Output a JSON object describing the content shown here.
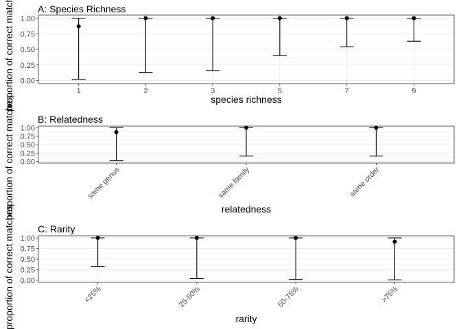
{
  "chart_data": [
    {
      "type": "errorbar",
      "title": "A: Species Richness",
      "xlabel": "species richness",
      "ylabel": "proportion of correct matches",
      "ylim": [
        0,
        1
      ],
      "yticks": [
        "0.00",
        "0.25",
        "0.50",
        "0.75",
        "1.00"
      ],
      "categories": [
        "1",
        "2",
        "3",
        "5",
        "7",
        "9"
      ],
      "x_tick_rotation": 0,
      "grid": true,
      "points": [
        {
          "y": 0.87,
          "lower": 0.02,
          "upper": 1.0
        },
        {
          "y": 1.0,
          "lower": 0.13,
          "upper": 1.0
        },
        {
          "y": 1.0,
          "lower": 0.16,
          "upper": 1.0
        },
        {
          "y": 1.0,
          "lower": 0.4,
          "upper": 1.0
        },
        {
          "y": 1.0,
          "lower": 0.54,
          "upper": 1.0
        },
        {
          "y": 1.0,
          "lower": 0.63,
          "upper": 1.0
        }
      ]
    },
    {
      "type": "errorbar",
      "title": "B: Relatedness",
      "xlabel": "relatedness",
      "ylabel": "proportion of correct matches",
      "ylim": [
        0,
        1
      ],
      "yticks": [
        "0.00",
        "0.25",
        "0.50",
        "0.75",
        "1.00"
      ],
      "categories": [
        "same genus",
        "same family",
        "same order"
      ],
      "x_tick_rotation": -45,
      "grid": true,
      "points": [
        {
          "y": 0.87,
          "lower": 0.02,
          "upper": 1.0
        },
        {
          "y": 1.0,
          "lower": 0.16,
          "upper": 1.0
        },
        {
          "y": 1.0,
          "lower": 0.16,
          "upper": 1.0
        }
      ]
    },
    {
      "type": "errorbar",
      "title": "C: Rarity",
      "xlabel": "rarity",
      "ylabel": "proportion of correct matches",
      "ylim": [
        0,
        1
      ],
      "yticks": [
        "0.00",
        "0.25",
        "0.50",
        "0.75",
        "1.00"
      ],
      "categories": [
        "<25%",
        "25-50%",
        "50-75%",
        ">75%"
      ],
      "x_tick_rotation": -45,
      "grid": true,
      "points": [
        {
          "y": 1.0,
          "lower": 0.33,
          "upper": 1.0
        },
        {
          "y": 1.0,
          "lower": 0.04,
          "upper": 1.0
        },
        {
          "y": 1.0,
          "lower": 0.02,
          "upper": 1.0
        },
        {
          "y": 0.91,
          "lower": 0.01,
          "upper": 1.0
        }
      ]
    }
  ]
}
